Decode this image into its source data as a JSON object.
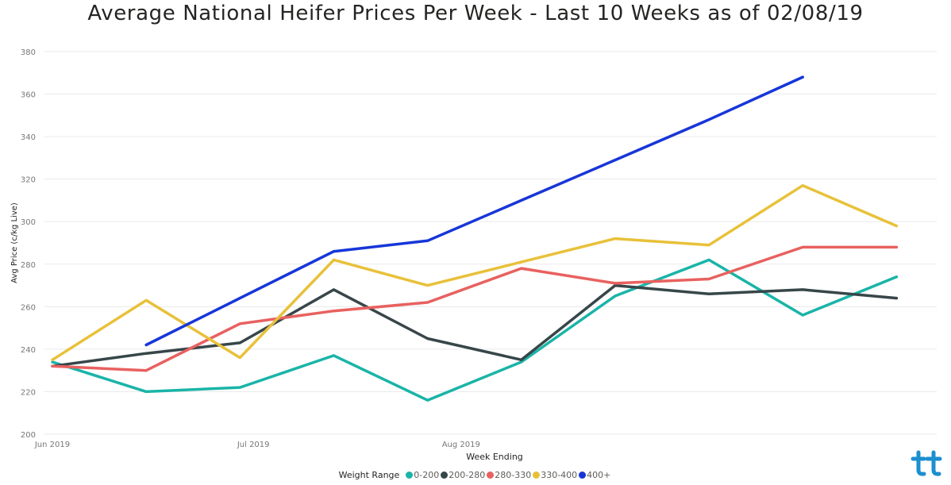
{
  "chart_data": {
    "type": "line",
    "title": "Average National Heifer Prices Per Week - Last 10 Weeks as of 02/08/19",
    "xlabel": "Week Ending",
    "ylabel": "Avg Price (c/kg Live)",
    "x": [
      "2019-06-01",
      "2019-06-15",
      "2019-06-29",
      "2019-07-13",
      "2019-07-27",
      "2019-08-10",
      "2019-08-24",
      "2019-09-07",
      "2019-09-21",
      "2019-10-05"
    ],
    "xlim": [
      "2019-06-01",
      "2019-10-11"
    ],
    "x_ticks": [
      {
        "date": "2019-06-01",
        "label": "Jun 2019"
      },
      {
        "date": "2019-07-01",
        "label": "Jul 2019"
      },
      {
        "date": "2019-08-01",
        "label": "Aug 2019"
      }
    ],
    "ylim": [
      200,
      380
    ],
    "y_ticks": [
      200,
      220,
      240,
      260,
      280,
      300,
      320,
      340,
      360,
      380
    ],
    "grid": true,
    "legend": {
      "title": "Weight Range",
      "placement": "bottom"
    },
    "series": [
      {
        "name": "0-200",
        "color": "#1AB4A8",
        "values": [
          234,
          220,
          222,
          237,
          216,
          234,
          265,
          282,
          256,
          274
        ]
      },
      {
        "name": "200-280",
        "color": "#374649",
        "values": [
          232,
          238,
          243,
          268,
          245,
          235,
          270,
          266,
          268,
          264
        ]
      },
      {
        "name": "280-330",
        "color": "#E8615F",
        "values": [
          232,
          230,
          252,
          258,
          262,
          278,
          271,
          273,
          288,
          288
        ]
      },
      {
        "name": "330-400",
        "color": "#E8C13A",
        "values": [
          235,
          263,
          236,
          282,
          270,
          281,
          292,
          289,
          317,
          298
        ]
      },
      {
        "name": "400+",
        "color": "#1736D8",
        "values": [
          null,
          242,
          264,
          286,
          291,
          310,
          329,
          348,
          368,
          null
        ]
      }
    ]
  },
  "logo": {
    "name": "brand-logo-icon",
    "color": "#1C8FD0"
  }
}
